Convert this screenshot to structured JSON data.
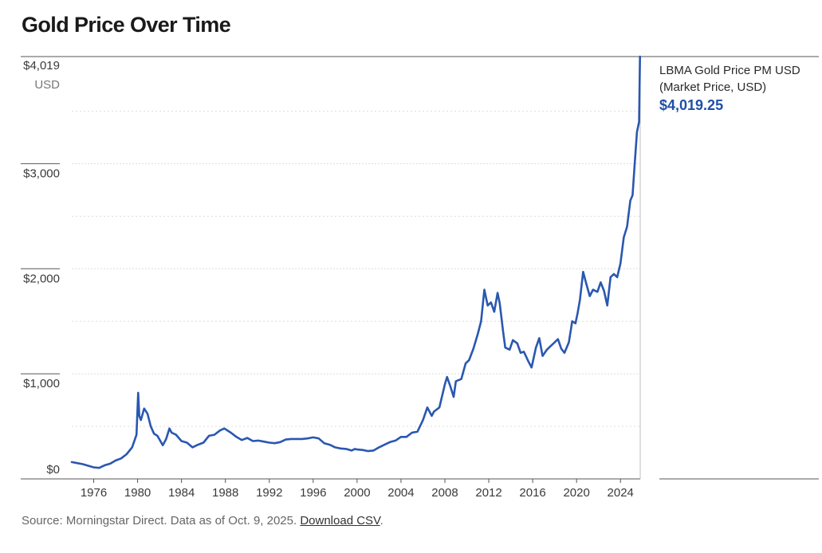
{
  "title": "Gold Price Over Time",
  "legend": {
    "name_line1": "LBMA Gold Price PM USD",
    "name_line2": "(Market Price, USD)",
    "value": "$4,019.25"
  },
  "source": {
    "text": "Source: Morningstar Direct. Data as of Oct. 9, 2025. ",
    "link": "Download CSV",
    "end": "."
  },
  "colors": {
    "line": "#2a57b0",
    "accent": "#1f4fa8",
    "grid": "#dcdcdc"
  },
  "chart_data": {
    "type": "line",
    "title": "Gold Price Over Time",
    "y_unit": "USD",
    "ylim": [
      0,
      4019.25
    ],
    "xlim": [
      1974.0,
      2025.8
    ],
    "y_ticks": [
      {
        "value": 0,
        "label": "$0"
      },
      {
        "value": 1000,
        "label": "$1,000"
      },
      {
        "value": 2000,
        "label": "$2,000"
      },
      {
        "value": 3000,
        "label": "$3,000"
      },
      {
        "value": 4019.25,
        "label": "$4,019"
      }
    ],
    "y_gridlines": [
      500,
      1000,
      1500,
      2000,
      2500,
      3000,
      3500
    ],
    "x_ticks": [
      "1976",
      "1980",
      "1984",
      "1988",
      "1992",
      "1996",
      "2000",
      "2004",
      "2008",
      "2012",
      "2016",
      "2020",
      "2024"
    ],
    "grid": true,
    "legend_position": "right",
    "series": [
      {
        "name": "LBMA Gold Price PM USD",
        "x": [
          1974.0,
          1974.5,
          1975.0,
          1975.5,
          1976.0,
          1976.5,
          1977.0,
          1977.5,
          1978.0,
          1978.5,
          1979.0,
          1979.5,
          1979.9,
          1980.05,
          1980.15,
          1980.3,
          1980.6,
          1980.9,
          1981.2,
          1981.5,
          1981.8,
          1982.3,
          1982.6,
          1982.9,
          1983.1,
          1983.5,
          1984.0,
          1984.5,
          1985.0,
          1985.5,
          1986.0,
          1986.5,
          1987.0,
          1987.5,
          1987.9,
          1988.5,
          1989.0,
          1989.5,
          1990.0,
          1990.5,
          1991.0,
          1991.5,
          1992.0,
          1992.5,
          1993.0,
          1993.5,
          1994.0,
          1994.5,
          1995.0,
          1995.5,
          1996.0,
          1996.5,
          1997.0,
          1997.5,
          1998.0,
          1998.5,
          1999.0,
          1999.5,
          1999.8,
          2000.0,
          2000.5,
          2001.0,
          2001.5,
          2002.0,
          2002.5,
          2003.0,
          2003.5,
          2004.0,
          2004.5,
          2005.0,
          2005.5,
          2006.0,
          2006.4,
          2006.8,
          2007.0,
          2007.5,
          2008.0,
          2008.2,
          2008.5,
          2008.8,
          2009.0,
          2009.5,
          2009.9,
          2010.2,
          2010.6,
          2011.0,
          2011.3,
          2011.6,
          2011.9,
          2012.2,
          2012.5,
          2012.8,
          2013.0,
          2013.3,
          2013.5,
          2013.9,
          2014.2,
          2014.6,
          2014.9,
          2015.2,
          2015.6,
          2015.9,
          2016.3,
          2016.6,
          2016.9,
          2017.3,
          2017.6,
          2017.9,
          2018.3,
          2018.6,
          2018.9,
          2019.3,
          2019.6,
          2019.9,
          2020.1,
          2020.3,
          2020.6,
          2020.9,
          2021.2,
          2021.5,
          2021.9,
          2022.2,
          2022.5,
          2022.8,
          2023.1,
          2023.4,
          2023.7,
          2024.0,
          2024.3,
          2024.6,
          2024.9,
          2025.1,
          2025.3,
          2025.5,
          2025.7,
          2025.78
        ],
        "values": [
          160,
          150,
          140,
          125,
          110,
          105,
          130,
          145,
          175,
          195,
          235,
          300,
          420,
          820,
          600,
          560,
          670,
          620,
          500,
          430,
          410,
          320,
          380,
          480,
          440,
          420,
          360,
          345,
          300,
          325,
          345,
          410,
          420,
          460,
          480,
          440,
          400,
          370,
          390,
          360,
          365,
          355,
          345,
          340,
          350,
          375,
          380,
          380,
          380,
          385,
          395,
          385,
          340,
          325,
          300,
          290,
          285,
          270,
          285,
          280,
          275,
          265,
          270,
          300,
          325,
          350,
          365,
          400,
          400,
          440,
          450,
          560,
          680,
          600,
          640,
          680,
          900,
          970,
          880,
          780,
          930,
          950,
          1100,
          1130,
          1240,
          1380,
          1500,
          1800,
          1650,
          1680,
          1590,
          1770,
          1670,
          1410,
          1250,
          1230,
          1320,
          1290,
          1200,
          1210,
          1120,
          1060,
          1250,
          1340,
          1170,
          1230,
          1260,
          1290,
          1330,
          1240,
          1200,
          1300,
          1500,
          1480,
          1580,
          1700,
          1970,
          1850,
          1740,
          1800,
          1780,
          1870,
          1790,
          1650,
          1920,
          1950,
          1920,
          2050,
          2300,
          2400,
          2650,
          2700,
          3000,
          3300,
          3400,
          4019.25
        ]
      }
    ]
  }
}
